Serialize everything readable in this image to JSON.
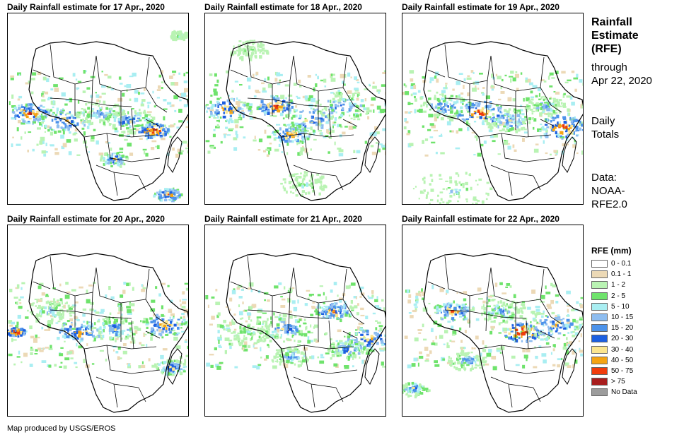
{
  "panels": [
    {
      "title": "Daily Rainfall estimate for 17 Apr., 2020"
    },
    {
      "title": "Daily Rainfall estimate for 18 Apr., 2020"
    },
    {
      "title": "Daily Rainfall estimate for 19 Apr., 2020"
    },
    {
      "title": "Daily Rainfall estimate for 20 Apr., 2020"
    },
    {
      "title": "Daily Rainfall estimate for 21 Apr., 2020"
    },
    {
      "title": "Daily Rainfall estimate for 22 Apr., 2020"
    }
  ],
  "sidebar": {
    "title_line1": "Rainfall",
    "title_line2": "Estimate",
    "title_line3": "(RFE)",
    "through_line1": "through",
    "through_line2": "Apr 22, 2020",
    "totals_line1": "Daily",
    "totals_line2": "Totals",
    "data_line1": "Data:",
    "data_line2": "NOAA-",
    "data_line3": "RFE2.0"
  },
  "legend": {
    "title": "RFE (mm)",
    "items": [
      {
        "label": "0 - 0.1",
        "color": "#ffffff"
      },
      {
        "label": "0.1 - 1",
        "color": "#ecd9b6"
      },
      {
        "label": "1 - 2",
        "color": "#b9f3b3"
      },
      {
        "label": "2 - 5",
        "color": "#6fe36c"
      },
      {
        "label": "5 - 10",
        "color": "#a9eef2"
      },
      {
        "label": "10 - 15",
        "color": "#8ebdf0"
      },
      {
        "label": "15 - 20",
        "color": "#4d93ea"
      },
      {
        "label": "20 - 30",
        "color": "#1c5fe0"
      },
      {
        "label": "30 - 40",
        "color": "#fbe58f"
      },
      {
        "label": "40 - 50",
        "color": "#f4a414"
      },
      {
        "label": "50 - 75",
        "color": "#f03c0c"
      },
      {
        "label": "> 75",
        "color": "#a81d1d"
      },
      {
        "label": "No Data",
        "color": "#9c9c9c"
      }
    ]
  },
  "footer": "Map produced by USGS/EROS"
}
